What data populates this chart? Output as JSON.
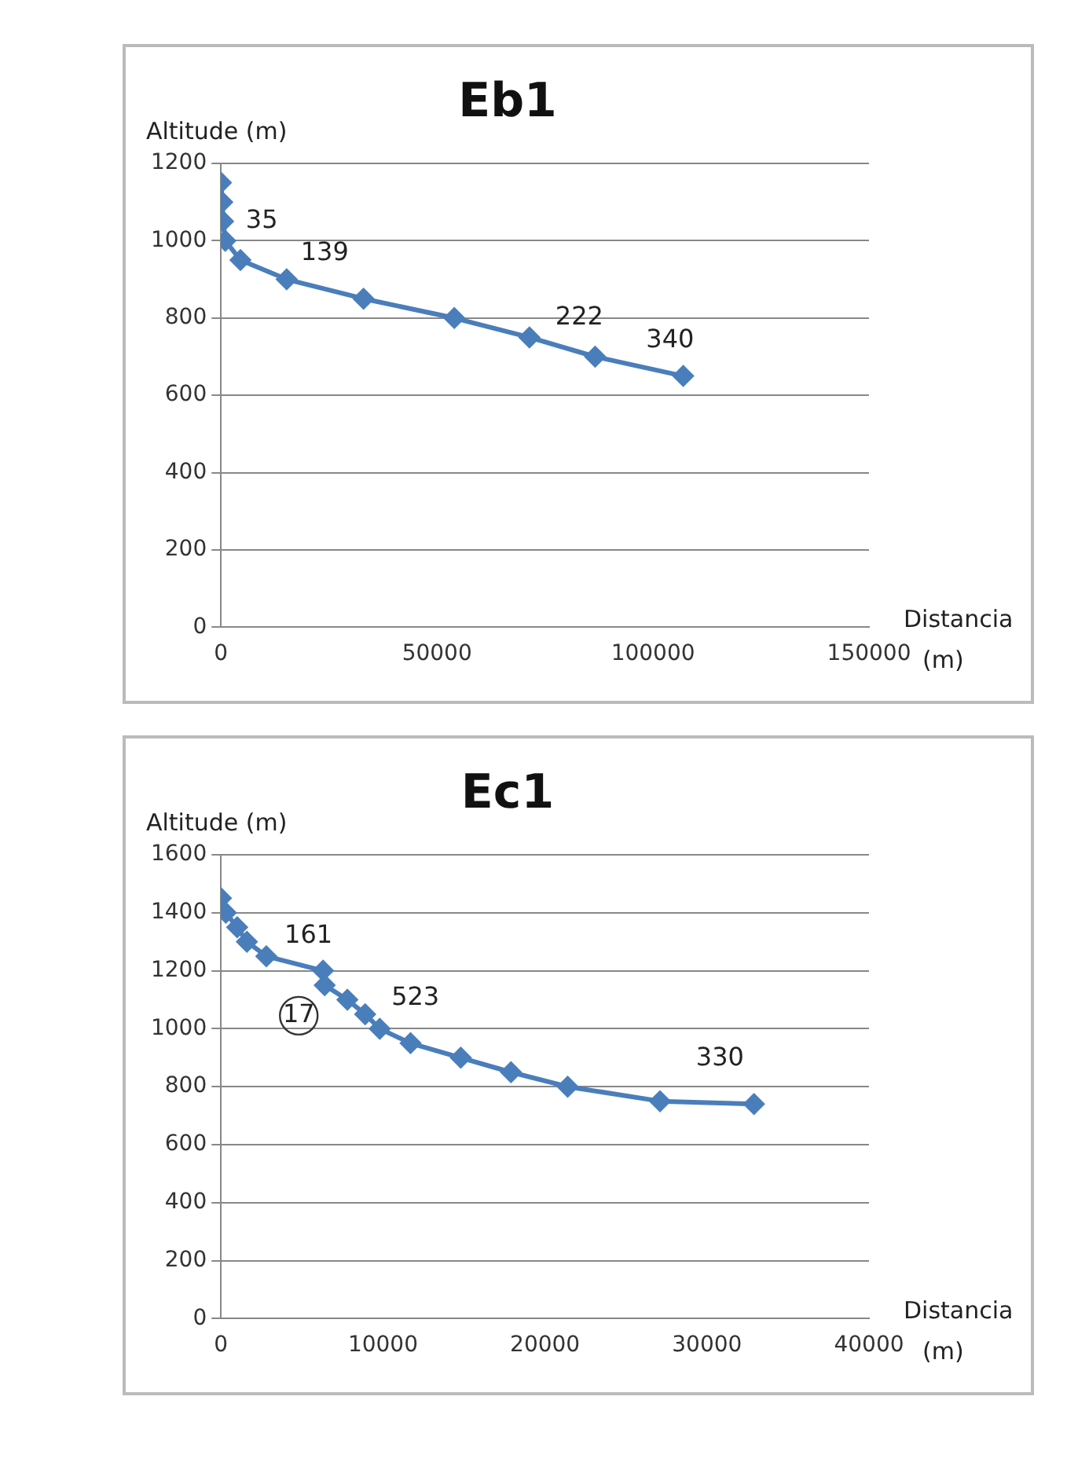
{
  "chart_data": [
    {
      "type": "line",
      "title": "Eb1",
      "xlabel": "Distancia (m)",
      "ylabel": "Altitude (m)",
      "marker": "diamond",
      "line_style": "solid",
      "grid": "y",
      "legend": false,
      "xlim": [
        0,
        150000
      ],
      "xticks": [
        0,
        50000,
        100000,
        150000
      ],
      "ylim": [
        0,
        1200
      ],
      "yticks": [
        0,
        200,
        400,
        600,
        800,
        1000,
        1200
      ],
      "series": [
        {
          "color": "#4a7ebb",
          "x": [
            0,
            300,
            500,
            1000,
            4500,
            15200,
            33000,
            54000,
            71400,
            86600,
            107000
          ],
          "values": [
            1150,
            1100,
            1050,
            1000,
            950,
            900,
            850,
            800,
            750,
            700,
            650
          ]
        }
      ],
      "annotations": [
        "35",
        "139",
        "222",
        "340"
      ]
    },
    {
      "type": "line",
      "title": "Ec1",
      "xlabel": "Distancia (m)",
      "ylabel": "Altitude (m)",
      "marker": "diamond",
      "line_style": "solid",
      "grid": "y",
      "legend": false,
      "xlim": [
        0,
        40000
      ],
      "xticks": [
        0,
        10000,
        20000,
        30000,
        40000
      ],
      "ylim": [
        0,
        1600
      ],
      "yticks": [
        0,
        200,
        400,
        600,
        800,
        1000,
        1200,
        1400,
        1600
      ],
      "series": [
        {
          "color": "#4a7ebb",
          "x": [
            0,
            300,
            1000,
            1600,
            2800,
            6300,
            6400,
            7800,
            8900,
            9800,
            11700,
            14800,
            17900,
            21400,
            27100,
            32900
          ],
          "values": [
            1450,
            1400,
            1350,
            1300,
            1250,
            1200,
            1150,
            1100,
            1050,
            1000,
            950,
            900,
            850,
            800,
            750,
            740
          ]
        }
      ],
      "annotations": [
        "161",
        "17",
        "523",
        "330"
      ]
    }
  ]
}
